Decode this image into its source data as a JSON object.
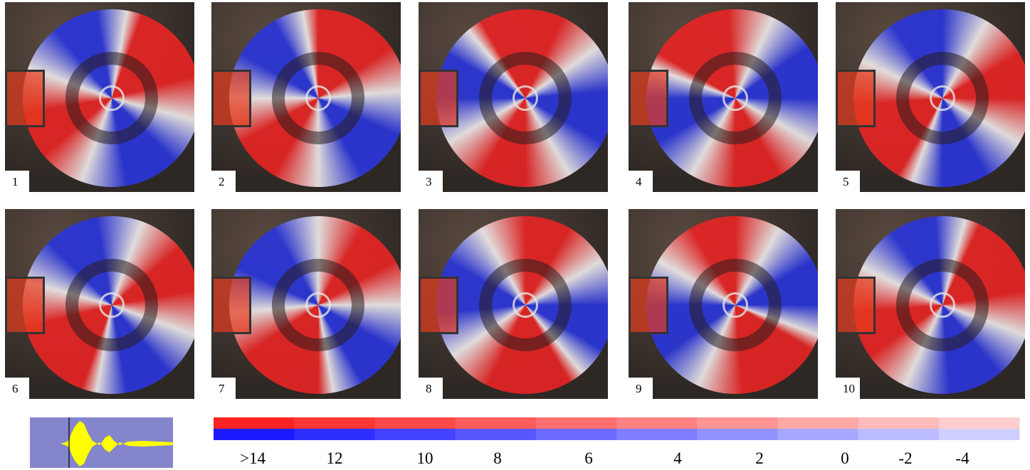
{
  "panels": [
    "1",
    "2",
    "3",
    "4",
    "5",
    "6",
    "7",
    "8",
    "9",
    "10"
  ],
  "colorbar": {
    "labels": [
      ">14",
      "12",
      "10",
      "8",
      "6",
      "4",
      "2",
      "0",
      "-2",
      "-4"
    ]
  }
}
